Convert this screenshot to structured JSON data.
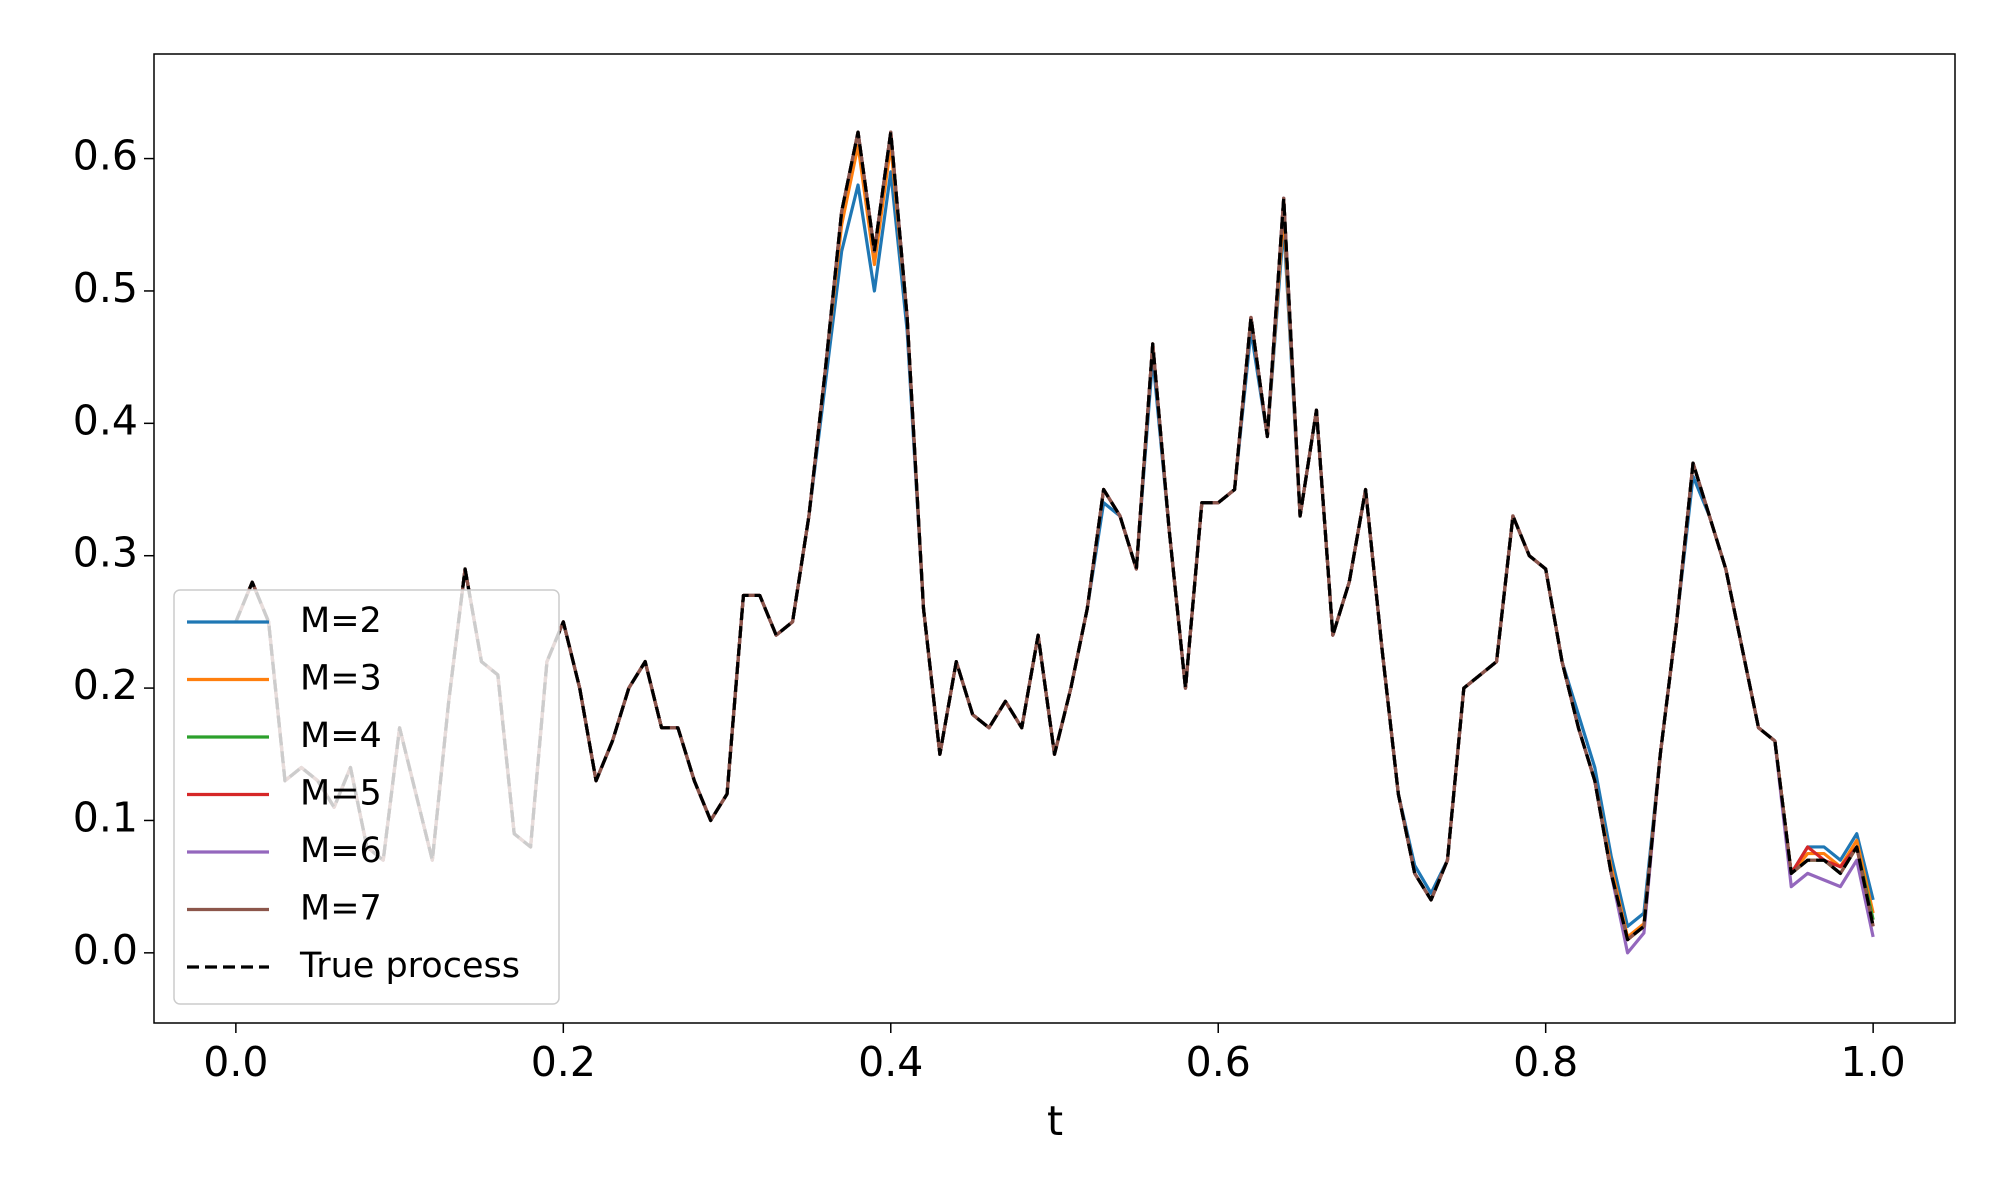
{
  "chart_data": {
    "type": "line",
    "xlabel": "t",
    "x": [
      0.0,
      0.01,
      0.02,
      0.03,
      0.04,
      0.05,
      0.06,
      0.07,
      0.08,
      0.09,
      0.1,
      0.11,
      0.12,
      0.13,
      0.14,
      0.15,
      0.16,
      0.17,
      0.18,
      0.19,
      0.2,
      0.21,
      0.22,
      0.23,
      0.24,
      0.25,
      0.26,
      0.27,
      0.28,
      0.29,
      0.3,
      0.31,
      0.32,
      0.33,
      0.34,
      0.35,
      0.36,
      0.37,
      0.38,
      0.39,
      0.4,
      0.41,
      0.42,
      0.43,
      0.44,
      0.45,
      0.46,
      0.47,
      0.48,
      0.49,
      0.5,
      0.51,
      0.52,
      0.53,
      0.54,
      0.55,
      0.56,
      0.57,
      0.58,
      0.59,
      0.6,
      0.61,
      0.62,
      0.63,
      0.64,
      0.65,
      0.66,
      0.67,
      0.68,
      0.69,
      0.7,
      0.71,
      0.72,
      0.73,
      0.74,
      0.75,
      0.76,
      0.77,
      0.78,
      0.79,
      0.8,
      0.81,
      0.82,
      0.83,
      0.84,
      0.85,
      0.86,
      0.87,
      0.88,
      0.89,
      0.9,
      0.91,
      0.92,
      0.93,
      0.94,
      0.95,
      0.96,
      0.97,
      0.98,
      0.99,
      1.0
    ],
    "series": [
      {
        "name": "M=2",
        "color": "#1f77b4",
        "values": [
          0.25,
          0.28,
          0.25,
          0.13,
          0.14,
          0.13,
          0.11,
          0.14,
          0.08,
          0.07,
          0.17,
          0.12,
          0.07,
          0.19,
          0.29,
          0.22,
          0.21,
          0.09,
          0.08,
          0.22,
          0.25,
          0.2,
          0.13,
          0.16,
          0.2,
          0.22,
          0.17,
          0.17,
          0.13,
          0.1,
          0.12,
          0.27,
          0.27,
          0.24,
          0.25,
          0.33,
          0.43,
          0.53,
          0.58,
          0.5,
          0.59,
          0.47,
          0.26,
          0.15,
          0.22,
          0.18,
          0.17,
          0.19,
          0.17,
          0.24,
          0.15,
          0.2,
          0.26,
          0.34,
          0.33,
          0.29,
          0.45,
          0.32,
          0.2,
          0.34,
          0.34,
          0.35,
          0.47,
          0.39,
          0.55,
          0.33,
          0.41,
          0.24,
          0.28,
          0.35,
          0.23,
          0.12,
          0.066,
          0.045,
          0.07,
          0.2,
          0.21,
          0.22,
          0.33,
          0.3,
          0.29,
          0.22,
          0.18,
          0.14,
          0.073,
          0.02,
          0.03,
          0.15,
          0.25,
          0.36,
          0.33,
          0.29,
          0.23,
          0.17,
          0.16,
          0.06,
          0.08,
          0.08,
          0.07,
          0.09,
          0.04
        ]
      },
      {
        "name": "M=3",
        "color": "#ff7f0e",
        "values": [
          0.25,
          0.28,
          0.25,
          0.13,
          0.14,
          0.13,
          0.11,
          0.14,
          0.08,
          0.07,
          0.17,
          0.12,
          0.07,
          0.19,
          0.29,
          0.22,
          0.21,
          0.09,
          0.08,
          0.22,
          0.25,
          0.2,
          0.13,
          0.16,
          0.2,
          0.22,
          0.17,
          0.17,
          0.13,
          0.1,
          0.12,
          0.27,
          0.27,
          0.24,
          0.25,
          0.33,
          0.44,
          0.55,
          0.61,
          0.52,
          0.61,
          0.48,
          0.26,
          0.15,
          0.22,
          0.18,
          0.17,
          0.19,
          0.17,
          0.24,
          0.15,
          0.2,
          0.26,
          0.35,
          0.33,
          0.29,
          0.46,
          0.32,
          0.2,
          0.34,
          0.34,
          0.35,
          0.48,
          0.39,
          0.56,
          0.33,
          0.41,
          0.24,
          0.28,
          0.35,
          0.23,
          0.12,
          0.06,
          0.04,
          0.07,
          0.2,
          0.21,
          0.22,
          0.33,
          0.3,
          0.29,
          0.22,
          0.17,
          0.13,
          0.065,
          0.012,
          0.022,
          0.15,
          0.25,
          0.37,
          0.33,
          0.29,
          0.23,
          0.17,
          0.16,
          0.06,
          0.075,
          0.075,
          0.065,
          0.085,
          0.03
        ]
      },
      {
        "name": "M=4",
        "color": "#2ca02c",
        "values": [
          0.25,
          0.28,
          0.25,
          0.13,
          0.14,
          0.13,
          0.11,
          0.14,
          0.08,
          0.07,
          0.17,
          0.12,
          0.07,
          0.19,
          0.29,
          0.22,
          0.21,
          0.09,
          0.08,
          0.22,
          0.25,
          0.2,
          0.13,
          0.16,
          0.2,
          0.22,
          0.17,
          0.17,
          0.13,
          0.1,
          0.12,
          0.27,
          0.27,
          0.24,
          0.25,
          0.33,
          0.44,
          0.56,
          0.62,
          0.53,
          0.62,
          0.48,
          0.26,
          0.15,
          0.22,
          0.18,
          0.17,
          0.19,
          0.17,
          0.24,
          0.15,
          0.2,
          0.26,
          0.35,
          0.33,
          0.29,
          0.46,
          0.32,
          0.2,
          0.34,
          0.34,
          0.35,
          0.48,
          0.39,
          0.57,
          0.33,
          0.41,
          0.24,
          0.28,
          0.35,
          0.23,
          0.12,
          0.06,
          0.04,
          0.07,
          0.2,
          0.21,
          0.22,
          0.33,
          0.3,
          0.29,
          0.22,
          0.17,
          0.13,
          0.06,
          0.01,
          0.02,
          0.15,
          0.25,
          0.37,
          0.33,
          0.29,
          0.23,
          0.17,
          0.16,
          0.06,
          0.07,
          0.07,
          0.06,
          0.08,
          0.025
        ]
      },
      {
        "name": "M=5",
        "color": "#d62728",
        "values": [
          0.25,
          0.28,
          0.25,
          0.13,
          0.14,
          0.13,
          0.11,
          0.14,
          0.08,
          0.07,
          0.17,
          0.12,
          0.07,
          0.19,
          0.29,
          0.22,
          0.21,
          0.09,
          0.08,
          0.22,
          0.25,
          0.2,
          0.13,
          0.16,
          0.2,
          0.22,
          0.17,
          0.17,
          0.13,
          0.1,
          0.12,
          0.27,
          0.27,
          0.24,
          0.25,
          0.33,
          0.44,
          0.56,
          0.62,
          0.53,
          0.62,
          0.48,
          0.26,
          0.15,
          0.22,
          0.18,
          0.17,
          0.19,
          0.17,
          0.24,
          0.15,
          0.2,
          0.26,
          0.35,
          0.33,
          0.29,
          0.46,
          0.32,
          0.2,
          0.34,
          0.34,
          0.35,
          0.48,
          0.39,
          0.57,
          0.33,
          0.41,
          0.24,
          0.28,
          0.35,
          0.23,
          0.12,
          0.06,
          0.04,
          0.07,
          0.2,
          0.21,
          0.22,
          0.33,
          0.3,
          0.29,
          0.22,
          0.17,
          0.13,
          0.06,
          0.01,
          0.02,
          0.15,
          0.25,
          0.37,
          0.33,
          0.29,
          0.23,
          0.17,
          0.16,
          0.06,
          0.08,
          0.07,
          0.065,
          0.08,
          0.02
        ]
      },
      {
        "name": "M=6",
        "color": "#9467bd",
        "values": [
          0.25,
          0.28,
          0.25,
          0.13,
          0.14,
          0.13,
          0.11,
          0.14,
          0.08,
          0.07,
          0.17,
          0.12,
          0.07,
          0.19,
          0.29,
          0.22,
          0.21,
          0.09,
          0.08,
          0.22,
          0.25,
          0.2,
          0.13,
          0.16,
          0.2,
          0.22,
          0.17,
          0.17,
          0.13,
          0.1,
          0.12,
          0.27,
          0.27,
          0.24,
          0.25,
          0.33,
          0.44,
          0.56,
          0.62,
          0.53,
          0.62,
          0.48,
          0.26,
          0.15,
          0.22,
          0.18,
          0.17,
          0.19,
          0.17,
          0.24,
          0.15,
          0.2,
          0.26,
          0.35,
          0.33,
          0.29,
          0.46,
          0.32,
          0.2,
          0.34,
          0.34,
          0.35,
          0.48,
          0.39,
          0.57,
          0.33,
          0.41,
          0.24,
          0.28,
          0.35,
          0.23,
          0.12,
          0.06,
          0.04,
          0.07,
          0.2,
          0.21,
          0.22,
          0.33,
          0.3,
          0.29,
          0.22,
          0.17,
          0.13,
          0.06,
          0.0,
          0.015,
          0.15,
          0.25,
          0.37,
          0.33,
          0.29,
          0.23,
          0.17,
          0.16,
          0.05,
          0.06,
          0.055,
          0.05,
          0.07,
          0.012
        ]
      },
      {
        "name": "M=7",
        "color": "#8c564b",
        "values": [
          0.25,
          0.28,
          0.25,
          0.13,
          0.14,
          0.13,
          0.11,
          0.14,
          0.08,
          0.07,
          0.17,
          0.12,
          0.07,
          0.19,
          0.29,
          0.22,
          0.21,
          0.09,
          0.08,
          0.22,
          0.25,
          0.2,
          0.13,
          0.16,
          0.2,
          0.22,
          0.17,
          0.17,
          0.13,
          0.1,
          0.12,
          0.27,
          0.27,
          0.24,
          0.25,
          0.33,
          0.44,
          0.56,
          0.62,
          0.53,
          0.62,
          0.48,
          0.26,
          0.15,
          0.22,
          0.18,
          0.17,
          0.19,
          0.17,
          0.24,
          0.15,
          0.2,
          0.26,
          0.35,
          0.33,
          0.29,
          0.46,
          0.32,
          0.2,
          0.34,
          0.34,
          0.35,
          0.48,
          0.39,
          0.57,
          0.33,
          0.41,
          0.24,
          0.28,
          0.35,
          0.23,
          0.12,
          0.06,
          0.04,
          0.07,
          0.2,
          0.21,
          0.22,
          0.33,
          0.3,
          0.29,
          0.22,
          0.17,
          0.13,
          0.06,
          0.01,
          0.02,
          0.15,
          0.25,
          0.37,
          0.33,
          0.29,
          0.23,
          0.17,
          0.16,
          0.06,
          0.07,
          0.07,
          0.06,
          0.08,
          0.02
        ]
      },
      {
        "name": "True process",
        "color": "#000000",
        "linestyle": "--",
        "values": [
          0.25,
          0.28,
          0.25,
          0.13,
          0.14,
          0.13,
          0.11,
          0.14,
          0.08,
          0.07,
          0.17,
          0.12,
          0.07,
          0.19,
          0.29,
          0.22,
          0.21,
          0.09,
          0.08,
          0.22,
          0.25,
          0.2,
          0.13,
          0.16,
          0.2,
          0.22,
          0.17,
          0.17,
          0.13,
          0.1,
          0.12,
          0.27,
          0.27,
          0.24,
          0.25,
          0.33,
          0.44,
          0.56,
          0.62,
          0.53,
          0.62,
          0.48,
          0.26,
          0.15,
          0.22,
          0.18,
          0.17,
          0.19,
          0.17,
          0.24,
          0.15,
          0.2,
          0.26,
          0.35,
          0.33,
          0.29,
          0.46,
          0.32,
          0.2,
          0.34,
          0.34,
          0.35,
          0.48,
          0.39,
          0.57,
          0.33,
          0.41,
          0.24,
          0.28,
          0.35,
          0.23,
          0.12,
          0.06,
          0.04,
          0.07,
          0.2,
          0.21,
          0.22,
          0.33,
          0.3,
          0.29,
          0.22,
          0.17,
          0.13,
          0.06,
          0.01,
          0.02,
          0.15,
          0.25,
          0.37,
          0.33,
          0.29,
          0.23,
          0.17,
          0.16,
          0.06,
          0.07,
          0.07,
          0.06,
          0.08,
          0.02
        ]
      }
    ],
    "xlim": [
      -0.05,
      1.05
    ],
    "xticks": [
      {
        "value": 0,
        "label": "0.0"
      },
      0.2,
      0.4,
      0.6,
      0.8,
      {
        "value": 1,
        "label": "1.0"
      }
    ],
    "ylim": [
      -0.053,
      0.679
    ],
    "yticks": [
      {
        "value": 0,
        "label": "0.0"
      },
      0.1,
      0.2,
      0.3,
      0.4,
      0.5,
      0.6
    ],
    "grid": false,
    "legend": "lower left"
  }
}
